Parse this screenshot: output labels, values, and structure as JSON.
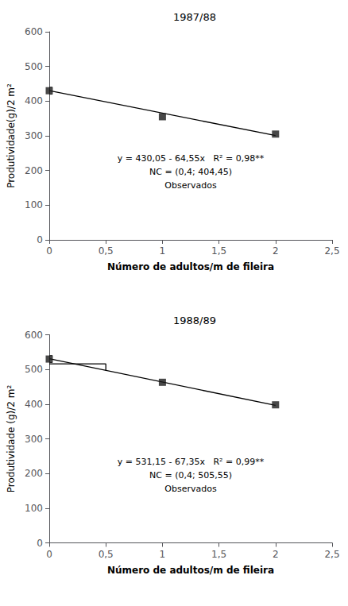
{
  "chart_data": [
    {
      "type": "scatter",
      "title": "1987/88",
      "xlabel": "Número de adultos/m de fileira",
      "ylabel": "Produtividade(g)/2 m²",
      "xlim": [
        0,
        2.5
      ],
      "ylim": [
        0,
        600
      ],
      "xticks": [
        0,
        {
          "value": 0.5,
          "label": "0,5"
        },
        1,
        {
          "value": 1.5,
          "label": "1,5"
        },
        2,
        {
          "value": 2.5,
          "label": "2,5"
        }
      ],
      "yticks": [
        0,
        100,
        200,
        300,
        400,
        500,
        600
      ],
      "grid": false,
      "annotations": [
        "y = 430,05 - 64,55x   R² = 0,98**",
        "NC = (0,4; 404,45)",
        "Observados"
      ],
      "series": [
        {
          "type": "line",
          "color": "#000000",
          "x": [
            0,
            2
          ],
          "values": [
            430.05,
            300.95
          ]
        },
        {
          "type": "scatter",
          "marker": "square",
          "color": "#1a1a1a",
          "x": [
            0,
            1,
            2
          ],
          "values": [
            430,
            355,
            305
          ],
          "yerr": [
            10,
            null,
            null
          ]
        }
      ]
    },
    {
      "type": "scatter",
      "title": "1988/89",
      "xlabel": "Número de adultos/m de fileira",
      "ylabel": "Produtividade (g)/2 m²",
      "xlim": [
        0,
        2.5
      ],
      "ylim": [
        0,
        600
      ],
      "xticks": [
        0,
        {
          "value": 0.5,
          "label": "0,5"
        },
        1,
        {
          "value": 1.5,
          "label": "1,5"
        },
        2,
        {
          "value": 2.5,
          "label": "2,5"
        }
      ],
      "yticks": [
        0,
        100,
        200,
        300,
        400,
        500,
        600
      ],
      "grid": false,
      "annotations": [
        "y = 531,15 - 67,35x   R² = 0,99**",
        "NC = (0,4; 505,55)",
        "Observados"
      ],
      "series": [
        {
          "type": "line",
          "color": "#000000",
          "x": [
            0,
            2
          ],
          "values": [
            531.15,
            396.45
          ]
        },
        {
          "type": "scatter",
          "marker": "square",
          "color": "#1a1a1a",
          "x": [
            0,
            1,
            2
          ],
          "values": [
            530,
            463,
            398
          ],
          "yerr": [
            10,
            null,
            null
          ]
        },
        {
          "type": "line",
          "color": "#000000",
          "x": [
            0,
            0.5,
            0.5
          ],
          "values": [
            516,
            516,
            497
          ]
        }
      ]
    }
  ]
}
